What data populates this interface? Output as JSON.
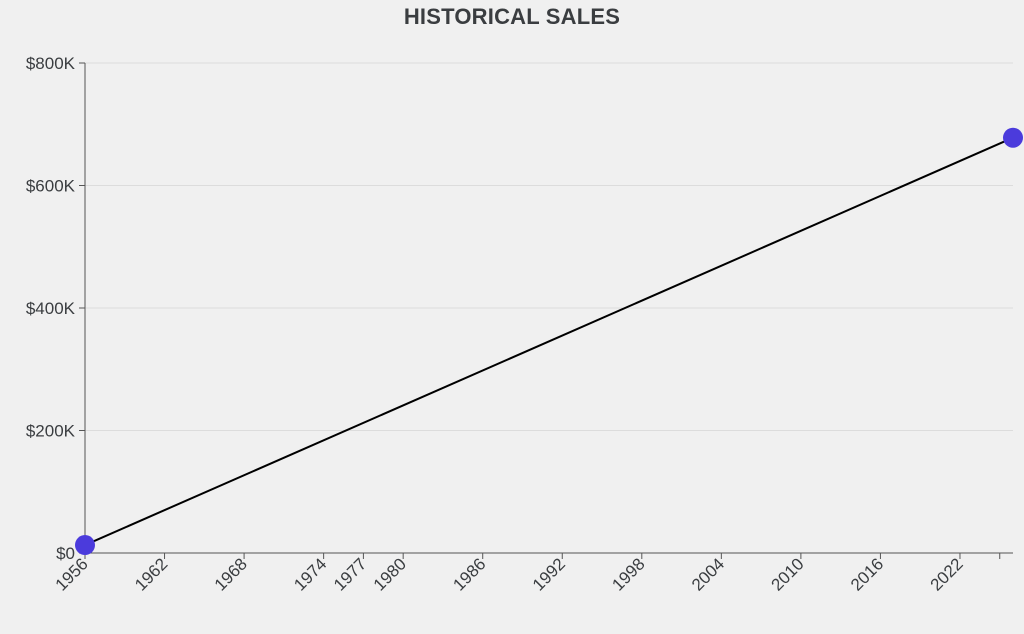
{
  "chart_data": {
    "type": "line",
    "title": "HISTORICAL SALES",
    "xlabel": "",
    "ylabel": "",
    "x": [
      1956,
      2026
    ],
    "series": [
      {
        "name": "",
        "values": [
          13000,
          678000
        ],
        "color": "#4b3bdc"
      }
    ],
    "xlim": [
      1956,
      2026
    ],
    "ylim": [
      0,
      800000
    ],
    "x_ticks": [
      1956,
      1962,
      1968,
      1974,
      1977,
      1980,
      1986,
      1992,
      1998,
      2004,
      2010,
      2016,
      2022
    ],
    "x_tick_labels": [
      "1956",
      "1962",
      "1968",
      "1974",
      "1977",
      "1980",
      "1986",
      "1992",
      "1998",
      "2004",
      "2010",
      "2016",
      "2022"
    ],
    "y_ticks": [
      0,
      200000,
      400000,
      600000,
      800000
    ],
    "y_tick_labels": [
      "$0",
      "$200K",
      "$400K",
      "$600K",
      "$800K"
    ],
    "grid": "horizontal",
    "line_color": "#000000",
    "marker_color": "#4b3bdc"
  }
}
